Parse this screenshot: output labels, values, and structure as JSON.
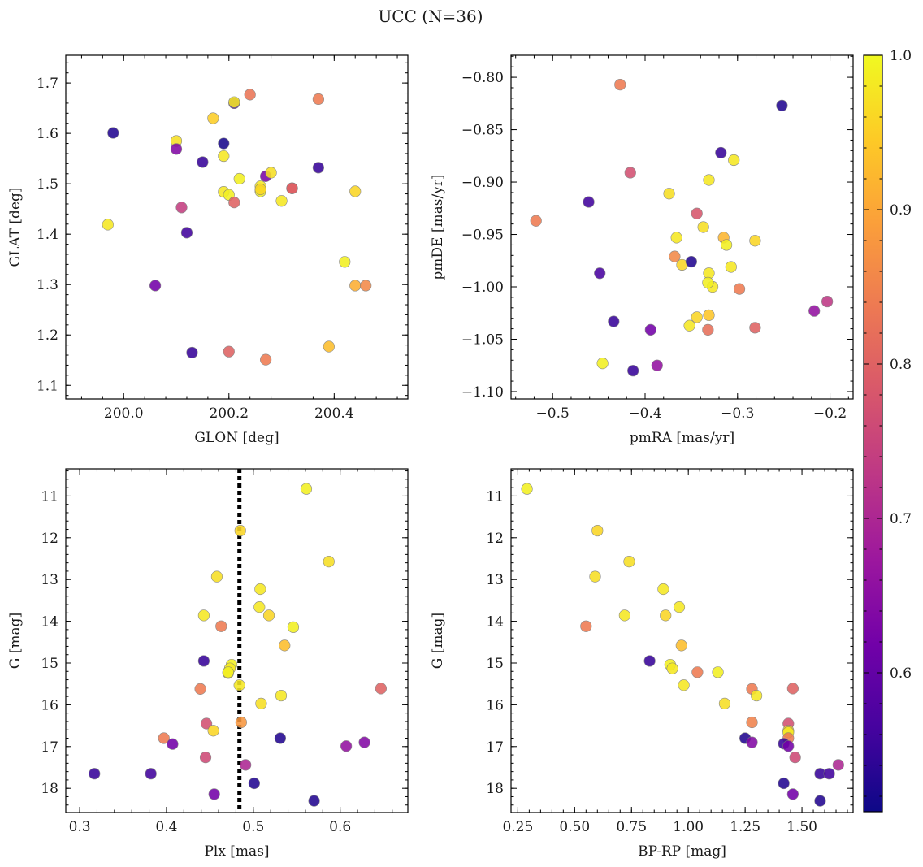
{
  "title": "UCC (N=36)",
  "colorbar": {
    "ticks": [
      0.6,
      0.7,
      0.8,
      0.9,
      1.0
    ],
    "tick_labels": [
      "0.6",
      "0.7",
      "0.8",
      "0.9",
      "1.0"
    ],
    "range": [
      0.51,
      1.0
    ],
    "colormap": "plasma",
    "colormap_stops": [
      "#0d0887",
      "#46039f",
      "#7201a8",
      "#9c179e",
      "#bd3786",
      "#d8576b",
      "#ed7953",
      "#fb9f3a",
      "#fdca26",
      "#f0f921"
    ]
  },
  "chart_data": [
    {
      "type": "scatter",
      "xlabel": "GLON [deg]",
      "ylabel": "GLAT [deg]",
      "xlim": [
        199.89,
        200.54
      ],
      "ylim": [
        1.073,
        1.755
      ],
      "y_inverted": false,
      "xticks": [
        200.0,
        200.2,
        200.4
      ],
      "xtick_labels": [
        "200.0",
        "200.2",
        "200.4"
      ],
      "yticks": [
        1.1,
        1.2,
        1.3,
        1.4,
        1.5,
        1.6,
        1.7
      ],
      "ytick_labels": [
        "1.1",
        "1.2",
        "1.3",
        "1.4",
        "1.5",
        "1.6",
        "1.7"
      ],
      "points": [
        {
          "x": 199.98,
          "y": 1.601,
          "c": 0.53
        },
        {
          "x": 199.97,
          "y": 1.419,
          "c": 0.98
        },
        {
          "x": 200.06,
          "y": 1.298,
          "c": 0.62
        },
        {
          "x": 200.1,
          "y": 1.585,
          "c": 0.97
        },
        {
          "x": 200.1,
          "y": 1.569,
          "c": 0.64
        },
        {
          "x": 200.11,
          "y": 1.453,
          "c": 0.74
        },
        {
          "x": 200.12,
          "y": 1.403,
          "c": 0.56
        },
        {
          "x": 200.13,
          "y": 1.165,
          "c": 0.55
        },
        {
          "x": 200.15,
          "y": 1.543,
          "c": 0.55
        },
        {
          "x": 200.17,
          "y": 1.63,
          "c": 0.95
        },
        {
          "x": 200.19,
          "y": 1.555,
          "c": 0.98
        },
        {
          "x": 200.19,
          "y": 1.58,
          "c": 0.52
        },
        {
          "x": 200.19,
          "y": 1.484,
          "c": 0.98
        },
        {
          "x": 200.2,
          "y": 1.478,
          "c": 0.99
        },
        {
          "x": 200.2,
          "y": 1.167,
          "c": 0.8
        },
        {
          "x": 200.21,
          "y": 1.66,
          "c": 0.57
        },
        {
          "x": 200.21,
          "y": 1.662,
          "c": 0.98
        },
        {
          "x": 200.21,
          "y": 1.463,
          "c": 0.8
        },
        {
          "x": 200.22,
          "y": 1.51,
          "c": 0.99
        },
        {
          "x": 200.24,
          "y": 1.677,
          "c": 0.83
        },
        {
          "x": 200.26,
          "y": 1.495,
          "c": 0.98
        },
        {
          "x": 200.26,
          "y": 1.485,
          "c": 0.99
        },
        {
          "x": 200.26,
          "y": 1.489,
          "c": 0.96
        },
        {
          "x": 200.27,
          "y": 1.515,
          "c": 0.63
        },
        {
          "x": 200.27,
          "y": 1.151,
          "c": 0.84
        },
        {
          "x": 200.28,
          "y": 1.522,
          "c": 0.97
        },
        {
          "x": 200.3,
          "y": 1.466,
          "c": 0.98
        },
        {
          "x": 200.32,
          "y": 1.491,
          "c": 0.77
        },
        {
          "x": 200.32,
          "y": 1.491,
          "c": 0.8
        },
        {
          "x": 200.37,
          "y": 1.668,
          "c": 0.84
        },
        {
          "x": 200.37,
          "y": 1.532,
          "c": 0.55
        },
        {
          "x": 200.39,
          "y": 1.177,
          "c": 0.93
        },
        {
          "x": 200.42,
          "y": 1.345,
          "c": 0.99
        },
        {
          "x": 200.44,
          "y": 1.485,
          "c": 0.96
        },
        {
          "x": 200.44,
          "y": 1.298,
          "c": 0.91
        },
        {
          "x": 200.46,
          "y": 1.298,
          "c": 0.86
        }
      ]
    },
    {
      "type": "scatter",
      "xlabel": "pmRA [mas/yr]",
      "ylabel": "pmDE [mas/yr]",
      "xlim": [
        -0.545,
        -0.175
      ],
      "ylim": [
        -1.107,
        -0.779
      ],
      "y_inverted": false,
      "xticks": [
        -0.5,
        -0.4,
        -0.3,
        -0.2
      ],
      "xtick_labels": [
        "−0.5",
        "−0.4",
        "−0.3",
        "−0.2"
      ],
      "yticks": [
        -1.1,
        -1.05,
        -1.0,
        -0.95,
        -0.9,
        -0.85,
        -0.8
      ],
      "ytick_labels": [
        "−1.10",
        "−1.05",
        "−1.00",
        "−0.95",
        "−0.90",
        "−0.85",
        "−0.80"
      ],
      "points": [
        {
          "x": -0.427,
          "y": -0.807,
          "c": 0.84
        },
        {
          "x": -0.252,
          "y": -0.827,
          "c": 0.53
        },
        {
          "x": -0.318,
          "y": -0.872,
          "c": 0.55
        },
        {
          "x": -0.304,
          "y": -0.879,
          "c": 0.98
        },
        {
          "x": -0.416,
          "y": -0.891,
          "c": 0.77
        },
        {
          "x": -0.331,
          "y": -0.898,
          "c": 0.98
        },
        {
          "x": -0.374,
          "y": -0.911,
          "c": 0.97
        },
        {
          "x": -0.461,
          "y": -0.919,
          "c": 0.56
        },
        {
          "x": -0.518,
          "y": -0.937,
          "c": 0.84
        },
        {
          "x": -0.344,
          "y": -0.93,
          "c": 0.78
        },
        {
          "x": -0.337,
          "y": -0.943,
          "c": 0.97
        },
        {
          "x": -0.366,
          "y": -0.953,
          "c": 0.98
        },
        {
          "x": -0.315,
          "y": -0.953,
          "c": 0.92
        },
        {
          "x": -0.312,
          "y": -0.96,
          "c": 0.99
        },
        {
          "x": -0.281,
          "y": -0.956,
          "c": 0.96
        },
        {
          "x": -0.368,
          "y": -0.971,
          "c": 0.86
        },
        {
          "x": -0.36,
          "y": -0.979,
          "c": 0.96
        },
        {
          "x": -0.35,
          "y": -0.976,
          "c": 0.53
        },
        {
          "x": -0.307,
          "y": -0.981,
          "c": 0.98
        },
        {
          "x": -0.449,
          "y": -0.987,
          "c": 0.57
        },
        {
          "x": -0.331,
          "y": -0.987,
          "c": 0.98
        },
        {
          "x": -0.327,
          "y": -1.0,
          "c": 0.98
        },
        {
          "x": -0.332,
          "y": -0.996,
          "c": 0.99
        },
        {
          "x": -0.298,
          "y": -1.002,
          "c": 0.84
        },
        {
          "x": -0.217,
          "y": -1.023,
          "c": 0.66
        },
        {
          "x": -0.203,
          "y": -1.014,
          "c": 0.73
        },
        {
          "x": -0.434,
          "y": -1.033,
          "c": 0.55
        },
        {
          "x": -0.344,
          "y": -1.029,
          "c": 0.96
        },
        {
          "x": -0.331,
          "y": -1.027,
          "c": 0.94
        },
        {
          "x": -0.352,
          "y": -1.037,
          "c": 0.98
        },
        {
          "x": -0.332,
          "y": -1.041,
          "c": 0.82
        },
        {
          "x": -0.394,
          "y": -1.041,
          "c": 0.62
        },
        {
          "x": -0.281,
          "y": -1.039,
          "c": 0.8
        },
        {
          "x": -0.446,
          "y": -1.073,
          "c": 0.99
        },
        {
          "x": -0.387,
          "y": -1.075,
          "c": 0.66
        },
        {
          "x": -0.413,
          "y": -1.08,
          "c": 0.55
        }
      ]
    },
    {
      "type": "scatter",
      "xlabel": "Plx [mas]",
      "ylabel": "G [mag]",
      "xlim": [
        0.284,
        0.678
      ],
      "ylim": [
        18.58,
        10.35
      ],
      "y_inverted": true,
      "xticks": [
        0.3,
        0.4,
        0.5,
        0.6
      ],
      "xtick_labels": [
        "0.3",
        "0.4",
        "0.5",
        "0.6"
      ],
      "yticks": [
        11,
        12,
        13,
        14,
        15,
        16,
        17,
        18
      ],
      "ytick_labels": [
        "11",
        "12",
        "13",
        "14",
        "15",
        "16",
        "17",
        "18"
      ],
      "vline": 0.484,
      "points": [
        {
          "x": 0.561,
          "y": 10.83,
          "c": 0.99
        },
        {
          "x": 0.485,
          "y": 11.83,
          "c": 0.96
        },
        {
          "x": 0.587,
          "y": 12.57,
          "c": 0.97
        },
        {
          "x": 0.458,
          "y": 12.93,
          "c": 0.97
        },
        {
          "x": 0.508,
          "y": 13.23,
          "c": 0.98
        },
        {
          "x": 0.507,
          "y": 13.66,
          "c": 0.98
        },
        {
          "x": 0.443,
          "y": 13.86,
          "c": 0.98
        },
        {
          "x": 0.518,
          "y": 13.86,
          "c": 0.96
        },
        {
          "x": 0.463,
          "y": 14.12,
          "c": 0.84
        },
        {
          "x": 0.546,
          "y": 14.14,
          "c": 0.99
        },
        {
          "x": 0.536,
          "y": 14.58,
          "c": 0.93
        },
        {
          "x": 0.443,
          "y": 14.95,
          "c": 0.55
        },
        {
          "x": 0.475,
          "y": 15.04,
          "c": 0.99
        },
        {
          "x": 0.473,
          "y": 15.13,
          "c": 0.98
        },
        {
          "x": 0.471,
          "y": 15.24,
          "c": 0.97
        },
        {
          "x": 0.471,
          "y": 15.22,
          "c": 0.99
        },
        {
          "x": 0.484,
          "y": 15.53,
          "c": 0.98
        },
        {
          "x": 0.439,
          "y": 15.62,
          "c": 0.84
        },
        {
          "x": 0.647,
          "y": 15.61,
          "c": 0.8
        },
        {
          "x": 0.532,
          "y": 15.78,
          "c": 0.98
        },
        {
          "x": 0.509,
          "y": 15.97,
          "c": 0.97
        },
        {
          "x": 0.486,
          "y": 16.42,
          "c": 0.88
        },
        {
          "x": 0.446,
          "y": 16.45,
          "c": 0.77
        },
        {
          "x": 0.454,
          "y": 16.62,
          "c": 0.96
        },
        {
          "x": 0.397,
          "y": 16.8,
          "c": 0.84
        },
        {
          "x": 0.531,
          "y": 16.8,
          "c": 0.53
        },
        {
          "x": 0.407,
          "y": 16.94,
          "c": 0.62
        },
        {
          "x": 0.628,
          "y": 16.9,
          "c": 0.64
        },
        {
          "x": 0.607,
          "y": 16.99,
          "c": 0.66
        },
        {
          "x": 0.445,
          "y": 17.26,
          "c": 0.76
        },
        {
          "x": 0.491,
          "y": 17.44,
          "c": 0.7
        },
        {
          "x": 0.317,
          "y": 17.65,
          "c": 0.55
        },
        {
          "x": 0.382,
          "y": 17.65,
          "c": 0.56
        },
        {
          "x": 0.501,
          "y": 17.88,
          "c": 0.53
        },
        {
          "x": 0.455,
          "y": 18.14,
          "c": 0.62
        },
        {
          "x": 0.57,
          "y": 18.3,
          "c": 0.53
        }
      ]
    },
    {
      "type": "scatter",
      "xlabel": "BP-RP [mag]",
      "ylabel": "G [mag]",
      "xlim": [
        0.22,
        1.725
      ],
      "ylim": [
        18.58,
        10.35
      ],
      "y_inverted": true,
      "xticks": [
        0.25,
        0.5,
        0.75,
        1.0,
        1.25,
        1.5
      ],
      "xtick_labels": [
        "0.25",
        "0.50",
        "0.75",
        "1.00",
        "1.25",
        "1.50"
      ],
      "yticks": [
        11,
        12,
        13,
        14,
        15,
        16,
        17,
        18
      ],
      "ytick_labels": [
        "11",
        "12",
        "13",
        "14",
        "15",
        "16",
        "17",
        "18"
      ],
      "points": [
        {
          "x": 0.29,
          "y": 10.83,
          "c": 0.99
        },
        {
          "x": 0.6,
          "y": 11.83,
          "c": 0.96
        },
        {
          "x": 0.74,
          "y": 12.57,
          "c": 0.97
        },
        {
          "x": 0.59,
          "y": 12.93,
          "c": 0.97
        },
        {
          "x": 0.89,
          "y": 13.23,
          "c": 0.98
        },
        {
          "x": 0.96,
          "y": 13.66,
          "c": 0.98
        },
        {
          "x": 0.72,
          "y": 13.86,
          "c": 0.98
        },
        {
          "x": 0.9,
          "y": 13.86,
          "c": 0.96
        },
        {
          "x": 0.55,
          "y": 14.12,
          "c": 0.84
        },
        {
          "x": 0.97,
          "y": 14.58,
          "c": 0.93
        },
        {
          "x": 0.83,
          "y": 14.95,
          "c": 0.55
        },
        {
          "x": 0.92,
          "y": 15.04,
          "c": 0.99
        },
        {
          "x": 0.93,
          "y": 15.13,
          "c": 0.98
        },
        {
          "x": 1.04,
          "y": 15.22,
          "c": 0.84
        },
        {
          "x": 1.13,
          "y": 15.22,
          "c": 0.99
        },
        {
          "x": 0.98,
          "y": 15.53,
          "c": 0.98
        },
        {
          "x": 1.28,
          "y": 15.62,
          "c": 0.84
        },
        {
          "x": 1.46,
          "y": 15.61,
          "c": 0.8
        },
        {
          "x": 1.3,
          "y": 15.78,
          "c": 0.98
        },
        {
          "x": 1.16,
          "y": 15.97,
          "c": 0.97
        },
        {
          "x": 1.28,
          "y": 16.42,
          "c": 0.85
        },
        {
          "x": 1.44,
          "y": 16.45,
          "c": 0.77
        },
        {
          "x": 1.44,
          "y": 16.62,
          "c": 0.96
        },
        {
          "x": 1.44,
          "y": 16.66,
          "c": 0.98
        },
        {
          "x": 1.44,
          "y": 16.8,
          "c": 0.84
        },
        {
          "x": 1.25,
          "y": 16.8,
          "c": 0.53
        },
        {
          "x": 1.28,
          "y": 16.9,
          "c": 0.64
        },
        {
          "x": 1.42,
          "y": 16.93,
          "c": 0.55
        },
        {
          "x": 1.44,
          "y": 16.99,
          "c": 0.62
        },
        {
          "x": 1.47,
          "y": 17.26,
          "c": 0.76
        },
        {
          "x": 1.66,
          "y": 17.44,
          "c": 0.7
        },
        {
          "x": 1.58,
          "y": 17.65,
          "c": 0.55
        },
        {
          "x": 1.62,
          "y": 17.65,
          "c": 0.56
        },
        {
          "x": 1.42,
          "y": 17.88,
          "c": 0.53
        },
        {
          "x": 1.46,
          "y": 18.14,
          "c": 0.62
        },
        {
          "x": 1.58,
          "y": 18.3,
          "c": 0.53
        }
      ]
    }
  ]
}
